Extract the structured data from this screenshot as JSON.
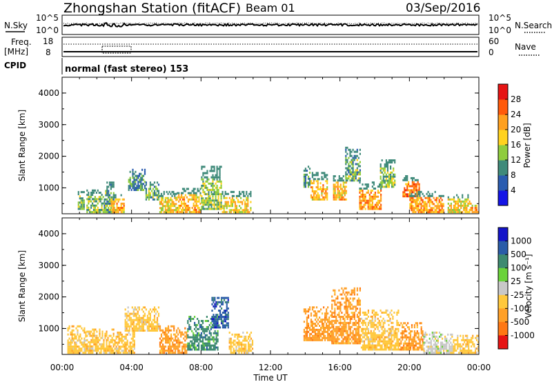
{
  "header": {
    "station": "Zhongshan Station (fitACF)",
    "beam": "Beam 01",
    "date": "03/Sep/2016"
  },
  "noise_panel": {
    "left_label": "N.Sky",
    "left_ticks": [
      "10^5",
      "10^0"
    ],
    "right_ticks": [
      "10^5",
      "10^0"
    ],
    "right_label": "N.Search"
  },
  "freq_panel": {
    "left_label_line1": "Freq.",
    "left_label_line2": "[MHz]",
    "left_ticks": [
      "18",
      "8"
    ],
    "right_ticks": [
      "60",
      "0"
    ],
    "right_label": "Nave"
  },
  "cpid": {
    "label": "CPID",
    "mode": "normal (fast stereo) 153"
  },
  "chart_data": [
    {
      "type": "heatmap",
      "parameter": "power",
      "ylabel": "Slant Range [km]",
      "y_ticks": [
        1000,
        2000,
        3000,
        4000
      ],
      "ylim": [
        180,
        4500
      ],
      "colorbar_label": "Power [dB]",
      "colorbar_ticks": [
        "4",
        "8",
        "12",
        "16",
        "20",
        "24",
        "28"
      ],
      "colorbar_colors": [
        "#1414e6",
        "#2a5cb0",
        "#3f8a7a",
        "#8fcc3d",
        "#ffd21e",
        "#ffa01e",
        "#ff5a0a",
        "#e61414"
      ],
      "blobs": [
        {
          "t": [
            0.9,
            1.3
          ],
          "r": [
            300,
            900
          ],
          "v": 12
        },
        {
          "t": [
            1.4,
            2.4
          ],
          "r": [
            200,
            950
          ],
          "v": 14
        },
        {
          "t": [
            2.4,
            3.0
          ],
          "r": [
            200,
            1200
          ],
          "v": 12
        },
        {
          "t": [
            2.8,
            3.6
          ],
          "r": [
            200,
            800
          ],
          "v": 20
        },
        {
          "t": [
            3.8,
            4.8
          ],
          "r": [
            900,
            1600
          ],
          "v": 10
        },
        {
          "t": [
            4.8,
            5.6
          ],
          "r": [
            600,
            1200
          ],
          "v": 12
        },
        {
          "t": [
            5.6,
            6.6
          ],
          "r": [
            200,
            900
          ],
          "v": 18
        },
        {
          "t": [
            6.6,
            8.0
          ],
          "r": [
            200,
            1000
          ],
          "v": 20
        },
        {
          "t": [
            8.0,
            9.2
          ],
          "r": [
            300,
            1700
          ],
          "v": 14
        },
        {
          "t": [
            9.2,
            10.9
          ],
          "r": [
            200,
            900
          ],
          "v": 18
        },
        {
          "t": [
            13.9,
            14.3
          ],
          "r": [
            1000,
            1700
          ],
          "v": 10
        },
        {
          "t": [
            14.3,
            15.3
          ],
          "r": [
            600,
            1500
          ],
          "v": 20
        },
        {
          "t": [
            15.6,
            16.4
          ],
          "r": [
            600,
            1400
          ],
          "v": 20
        },
        {
          "t": [
            16.3,
            17.2
          ],
          "r": [
            1200,
            2300
          ],
          "v": 12
        },
        {
          "t": [
            17.1,
            18.4
          ],
          "r": [
            300,
            1200
          ],
          "v": 22
        },
        {
          "t": [
            18.3,
            19.2
          ],
          "r": [
            1000,
            1900
          ],
          "v": 14
        },
        {
          "t": [
            19.6,
            20.6
          ],
          "r": [
            700,
            1400
          ],
          "v": 24
        },
        {
          "t": [
            20.0,
            22.0
          ],
          "r": [
            200,
            900
          ],
          "v": 22
        },
        {
          "t": [
            22.2,
            23.5
          ],
          "r": [
            200,
            800
          ],
          "v": 18
        },
        {
          "t": [
            23.5,
            24.0
          ],
          "r": [
            200,
            600
          ],
          "v": 20
        }
      ]
    },
    {
      "type": "heatmap",
      "parameter": "velocity",
      "ylabel": "Slant Range [km]",
      "y_ticks": [
        1000,
        2000,
        3000,
        4000
      ],
      "ylim": [
        180,
        4500
      ],
      "colorbar_label": "Velocity [m s⁻¹]",
      "colorbar_ticks": [
        "1000",
        "500",
        "100",
        "25",
        "-25",
        "-100",
        "-500",
        "-1000"
      ],
      "colorbar_colors": [
        "#1414c8",
        "#2a5ca8",
        "#3d8a70",
        "#6ad23a",
        "#c8c8c8",
        "#ffc83c",
        "#ffa028",
        "#ff7814",
        "#e61414"
      ],
      "x_ticks": [
        "00:00",
        "04:00",
        "08:00",
        "12:00",
        "16:00",
        "20:00",
        "00:00"
      ],
      "xlabel": "Time UT",
      "xlim": [
        0,
        24
      ],
      "blobs": [
        {
          "t": [
            0.3,
            1.4
          ],
          "r": [
            200,
            1100
          ],
          "v": -100
        },
        {
          "t": [
            1.4,
            3.0
          ],
          "r": [
            200,
            1000
          ],
          "v": -100
        },
        {
          "t": [
            3.0,
            4.2
          ],
          "r": [
            200,
            900
          ],
          "v": -100
        },
        {
          "t": [
            3.6,
            5.6
          ],
          "r": [
            900,
            1700
          ],
          "v": -100
        },
        {
          "t": [
            5.6,
            7.2
          ],
          "r": [
            200,
            1100
          ],
          "v": -500
        },
        {
          "t": [
            7.2,
            9.0
          ],
          "r": [
            300,
            1400
          ],
          "v": 100
        },
        {
          "t": [
            8.6,
            9.6
          ],
          "r": [
            1000,
            2000
          ],
          "v": 500
        },
        {
          "t": [
            9.6,
            11.0
          ],
          "r": [
            200,
            900
          ],
          "v": -100
        },
        {
          "t": [
            13.9,
            15.5
          ],
          "r": [
            600,
            1700
          ],
          "v": -500
        },
        {
          "t": [
            15.5,
            17.2
          ],
          "r": [
            500,
            2300
          ],
          "v": -500
        },
        {
          "t": [
            17.2,
            19.4
          ],
          "r": [
            300,
            1600
          ],
          "v": -100
        },
        {
          "t": [
            19.4,
            20.8
          ],
          "r": [
            300,
            1200
          ],
          "v": -500
        },
        {
          "t": [
            20.8,
            22.5
          ],
          "r": [
            200,
            900
          ],
          "v": -25
        },
        {
          "t": [
            22.5,
            24.0
          ],
          "r": [
            200,
            800
          ],
          "v": -100
        }
      ]
    }
  ]
}
